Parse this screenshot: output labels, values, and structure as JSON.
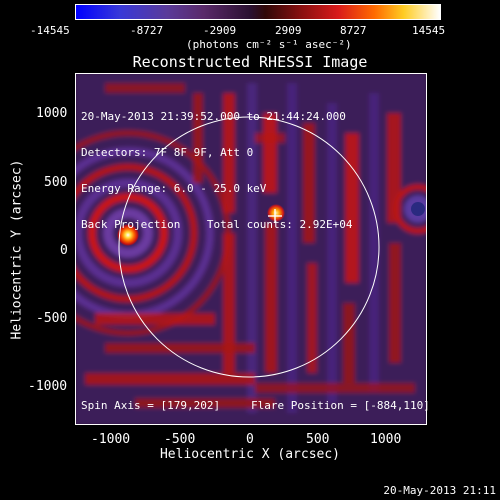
{
  "colorbar": {
    "ticks": [
      "-14545",
      "-8727",
      "-2909",
      "2909",
      "8727",
      "14545"
    ],
    "unit_label": "(photons cm⁻² s⁻¹ asec⁻²)"
  },
  "plot": {
    "title": "Reconstructed RHESSI Image",
    "info_lines": [
      "20-May-2013 21:39:52.000 to 21:44:24.000",
      "Detectors: 7F 8F 9F, Att 0",
      "Energy Range: 6.0 - 25.0 keV",
      "Back Projection    Total counts: 2.92E+04"
    ],
    "spin_axis": "Spin Axis = [179,202]",
    "flare_position": "Flare Position = [-884,110]",
    "xlabel": "Heliocentric X (arcsec)",
    "ylabel": "Heliocentric Y (arcsec)",
    "x_ticks": [
      "-1000",
      "-500",
      "0",
      "500",
      "1000"
    ],
    "y_ticks": [
      "1000",
      "500",
      "0",
      "-500",
      "-1000"
    ]
  },
  "footer": {
    "timestamp": "20-May-2013 21:11"
  }
}
